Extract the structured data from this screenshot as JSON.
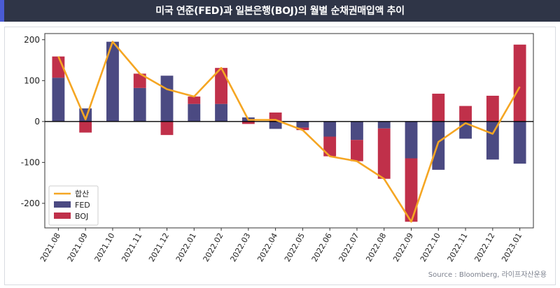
{
  "title": "미국 연준(FED)과 일본은행(BOJ)의 월별 순채권매입액 추이",
  "source": "Source : Bloomberg, 라이프자산운용",
  "colors": {
    "title_bg": "#2f3547",
    "fed": "#4b4a82",
    "boj": "#c0304a",
    "total": "#f5a623"
  },
  "chart_data": {
    "type": "bar",
    "stacked": true,
    "categories": [
      "2021.08",
      "2021.09",
      "2021.10",
      "2021.11",
      "2021.12",
      "2022.01",
      "2022.02",
      "2022.03",
      "2022.04",
      "2022.05",
      "2022.06",
      "2022.07",
      "2022.08",
      "2022.09",
      "2022.10",
      "2022.11",
      "2022.12",
      "2023.01"
    ],
    "series": [
      {
        "name": "FED",
        "type": "bar",
        "color": "#4b4a82",
        "values": [
          107,
          32,
          195,
          82,
          112,
          43,
          43,
          10,
          -18,
          -15,
          -37,
          -45,
          -17,
          -90,
          -118,
          -42,
          -93,
          -103
        ]
      },
      {
        "name": "BOJ",
        "type": "bar",
        "color": "#c0304a",
        "values": [
          52,
          -27,
          0,
          35,
          -33,
          18,
          88,
          -6,
          22,
          -6,
          -48,
          -52,
          -123,
          -155,
          68,
          38,
          63,
          188
        ]
      },
      {
        "name": "합산",
        "type": "line",
        "color": "#f5a623",
        "values": [
          159,
          5,
          195,
          117,
          79,
          61,
          131,
          4,
          4,
          -21,
          -85,
          -97,
          -140,
          -245,
          -50,
          -4,
          -30,
          85
        ]
      }
    ],
    "legend_order": [
      "합산",
      "FED",
      "BOJ"
    ],
    "yticks": [
      -200,
      -100,
      0,
      100,
      200
    ],
    "ylim": [
      -260,
      215
    ],
    "legend_position": "lower-left",
    "grid": false
  }
}
